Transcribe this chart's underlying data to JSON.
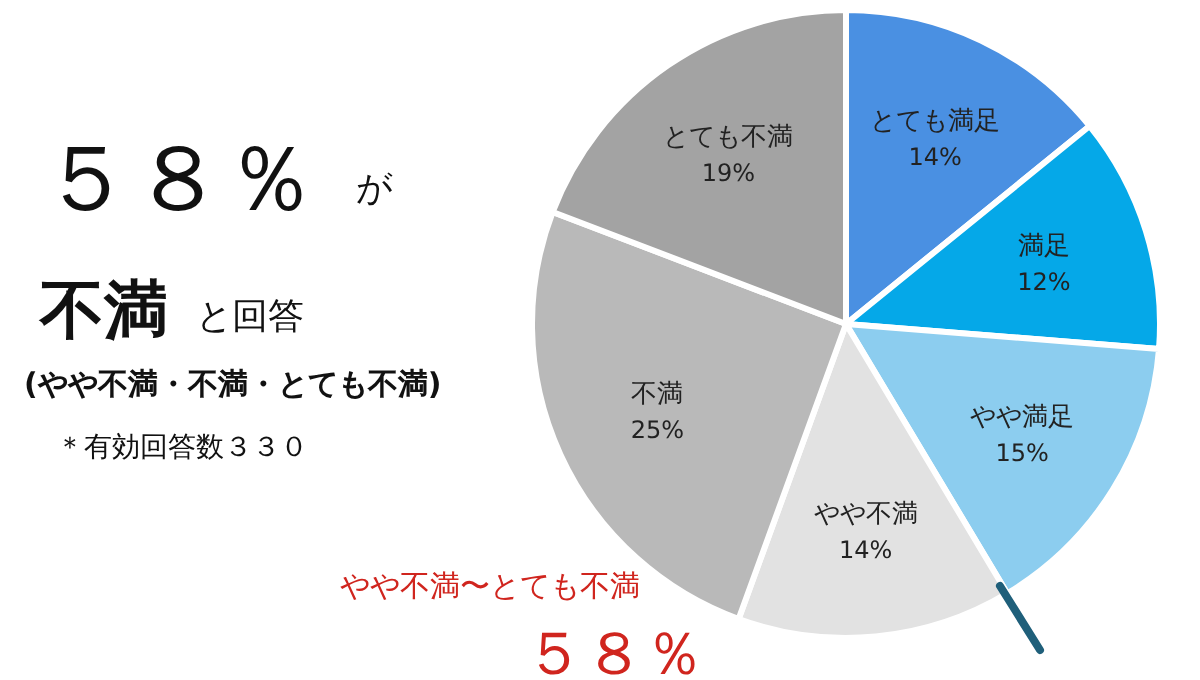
{
  "chart_data": {
    "type": "pie",
    "categories": [
      "とても満足",
      "満足",
      "やや満足",
      "やや不満",
      "不満",
      "とても不満"
    ],
    "values": [
      14,
      12,
      15,
      14,
      25,
      19
    ],
    "value_labels": [
      "14%",
      "12%",
      "15%",
      "14%",
      "25%",
      "19%"
    ],
    "colors": [
      "#4a90e2",
      "#05a8e8",
      "#8ccdef",
      "#e2e2e2",
      "#b9b9b9",
      "#a3a3a3"
    ],
    "annotations": [
      "５８％",
      "が",
      "不満",
      "と回答",
      "(やや不満・不満・とても不満)",
      "＊有効回答数３３０",
      "やや不満〜とても不満",
      "５８％"
    ],
    "legend": false
  }
}
